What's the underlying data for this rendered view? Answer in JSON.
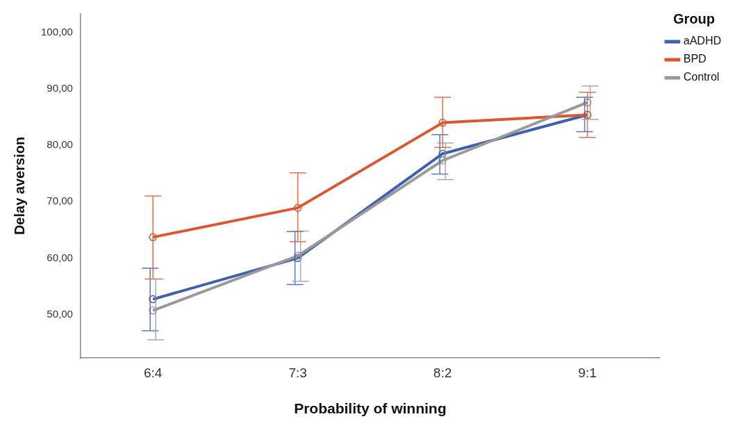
{
  "chart_data": {
    "type": "line",
    "xlabel": "Probability of winning",
    "ylabel": "Delay aversion",
    "legend_title": "Group",
    "categories": [
      "6:4",
      "7:3",
      "8:2",
      "9:1"
    ],
    "series": [
      {
        "name": "aADHD",
        "color": "#3f5fb0",
        "values": [
          52.7,
          60.0,
          78.5,
          85.4
        ],
        "errors": [
          [
            47.1,
            58.2
          ],
          [
            55.3,
            64.7
          ],
          [
            74.9,
            81.9
          ],
          [
            82.4,
            88.5
          ]
        ]
      },
      {
        "name": "BPD",
        "color": "#d9582f",
        "values": [
          63.7,
          68.9,
          84.0,
          85.4
        ],
        "errors": [
          [
            56.3,
            71.0
          ],
          [
            62.9,
            75.1
          ],
          [
            79.6,
            88.5
          ],
          [
            81.4,
            89.4
          ]
        ]
      },
      {
        "name": "Control",
        "color": "#9a9a9a",
        "values": [
          50.7,
          60.4,
          77.3,
          87.6
        ],
        "errors": [
          [
            45.5,
            56.3
          ],
          [
            55.9,
            64.8
          ],
          [
            73.9,
            80.4
          ],
          [
            84.6,
            90.5
          ]
        ]
      }
    ],
    "ylim": [
      42.3,
      103.3
    ],
    "yticks": [
      {
        "value": 50,
        "label": "50,00"
      },
      {
        "value": 60,
        "label": "60,00"
      },
      {
        "value": 70,
        "label": "70,00"
      },
      {
        "value": 80,
        "label": "80,00"
      },
      {
        "value": 90,
        "label": "90,00"
      },
      {
        "value": 100,
        "label": "100,00"
      }
    ],
    "grid": false,
    "legend": "top right",
    "marker": "circle",
    "line_style": "solid"
  }
}
